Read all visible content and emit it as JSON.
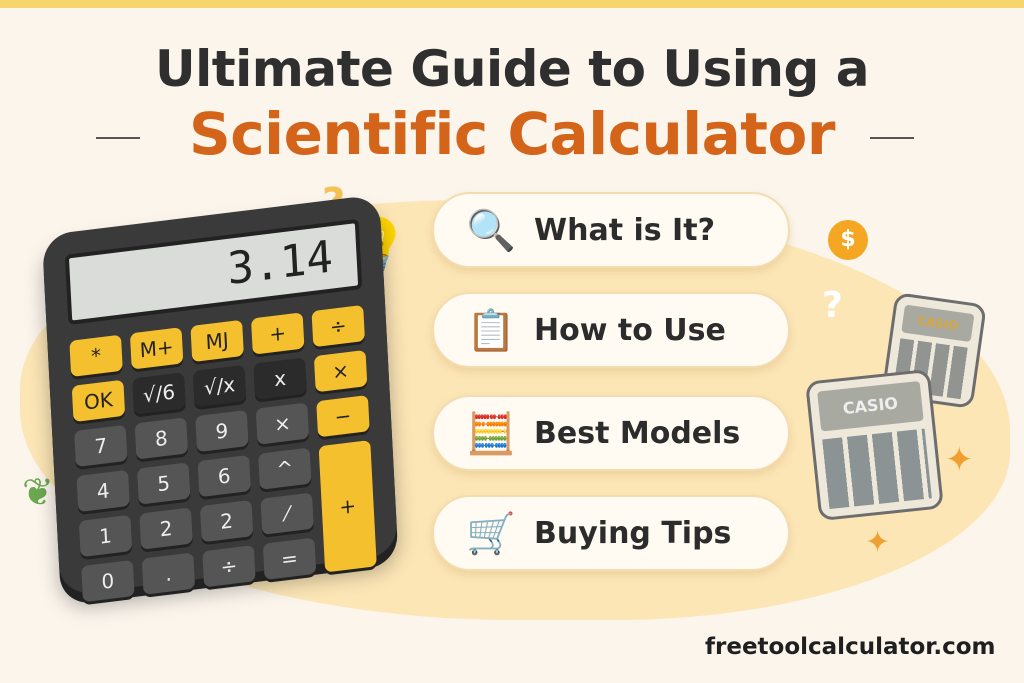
{
  "title": {
    "line1": "Ultimate Guide to Using a",
    "line2": "Scientific Calculator"
  },
  "colors": {
    "accent": "#d4641a",
    "title": "#2f2f2f",
    "key_yellow": "#f5c02e",
    "background": "#fbf5ec"
  },
  "calculator": {
    "display": "3.14",
    "keys": [
      "*",
      "M+",
      "MJ",
      "+",
      "÷",
      "OK",
      "√/6",
      "√/x",
      "x",
      "×",
      "7",
      "8",
      "9",
      "×",
      "−",
      "4",
      "5",
      "6",
      "^",
      "+",
      "1",
      "2",
      "2",
      "⁄",
      "0",
      ".",
      "÷",
      "="
    ]
  },
  "mini_calculators": [
    {
      "brand": "CASIO"
    },
    {
      "brand": "CASIO"
    }
  ],
  "menu": [
    {
      "label": "What is It?",
      "icon": "magnifier-icon"
    },
    {
      "label": "How to Use",
      "icon": "checklist-icon"
    },
    {
      "label": "Best Models",
      "icon": "calculator-icon"
    },
    {
      "label": "Buying Tips",
      "icon": "shopping-cart-icon"
    }
  ],
  "footer": {
    "site": "freetoolcalculator.com"
  }
}
